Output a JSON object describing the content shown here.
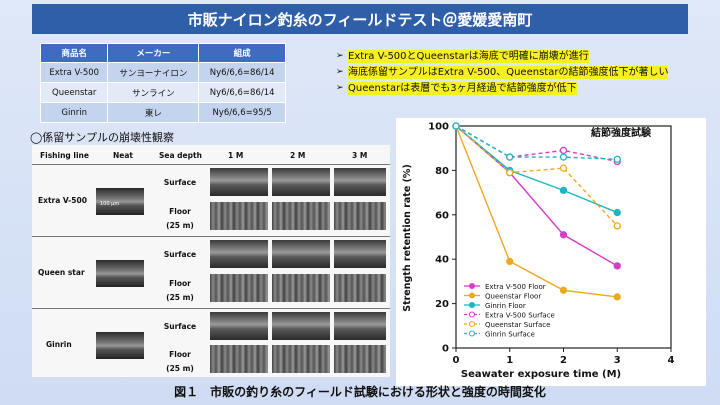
{
  "title": "市販ナイロン釣糸のフィールドテスト＠愛媛愛南町",
  "composition_table": {
    "headers": [
      "商品名",
      "メーカー",
      "組成"
    ],
    "rows": [
      [
        "Extra V-500",
        "サンヨーナイロン",
        "Ny6/6,6=86/14"
      ],
      [
        "Queenstar",
        "サンライン",
        "Ny6/6,6=86/14"
      ],
      [
        "Ginrin",
        "東レ",
        "Ny6/6,6=95/5"
      ]
    ]
  },
  "bullets": [
    "Extra V-500とQueenstarは海底で明確に崩壊が進行",
    "海底係留サンプルはExtra V-500、Queenstarの結節強度低下が著しい",
    "Queenstarは表層でも3ヶ月経過で結節強度が低下"
  ],
  "bullet_mark": "➢",
  "observation": {
    "section_title": "◯係留サンプルの崩壊性観察",
    "headers": [
      "Fishing line",
      "Neat",
      "Sea depth",
      "1 M",
      "2 M",
      "3 M"
    ],
    "lines": [
      "Extra V-500",
      "Queen star",
      "Ginrin"
    ],
    "depth_surface": "Surface",
    "depth_floor": "Floor",
    "depth_floor_note": "(25 m)",
    "scale_label": "100 μm"
  },
  "chart_data": {
    "type": "line",
    "title": "結節強度試験",
    "xlabel": "Seawater exposure time (M)",
    "ylabel": "Strength retention rate (%)",
    "xlim": [
      0,
      4
    ],
    "ylim": [
      0,
      100
    ],
    "xticks": [
      0,
      1,
      2,
      3,
      4
    ],
    "yticks": [
      0,
      20,
      40,
      60,
      80,
      100
    ],
    "x": [
      0,
      1,
      2,
      3
    ],
    "legend_position": "bottom-left",
    "series": [
      {
        "name": "Extra V-500 Floor",
        "values": [
          100,
          79,
          51,
          37
        ],
        "color": "#d63cc8",
        "style": "solid",
        "marker": "filled"
      },
      {
        "name": "Queenstar Floor",
        "values": [
          100,
          39,
          26,
          23
        ],
        "color": "#f0a820",
        "style": "solid",
        "marker": "filled"
      },
      {
        "name": "Ginrin Floor",
        "values": [
          100,
          80,
          71,
          61
        ],
        "color": "#1fb5c2",
        "style": "solid",
        "marker": "filled"
      },
      {
        "name": "Extra V-500 Surface",
        "values": [
          100,
          86,
          89,
          84
        ],
        "color": "#d63cc8",
        "style": "dashed",
        "marker": "open"
      },
      {
        "name": "Queenstar Surface",
        "values": [
          100,
          79,
          81,
          55
        ],
        "color": "#f0a820",
        "style": "dashed",
        "marker": "open"
      },
      {
        "name": "Ginrin Surface",
        "values": [
          100,
          86,
          86,
          85
        ],
        "color": "#1fb5c2",
        "style": "dashed",
        "marker": "open"
      }
    ]
  },
  "caption": "図１　市販の釣り糸のフィールド試験における形状と強度の時間変化"
}
